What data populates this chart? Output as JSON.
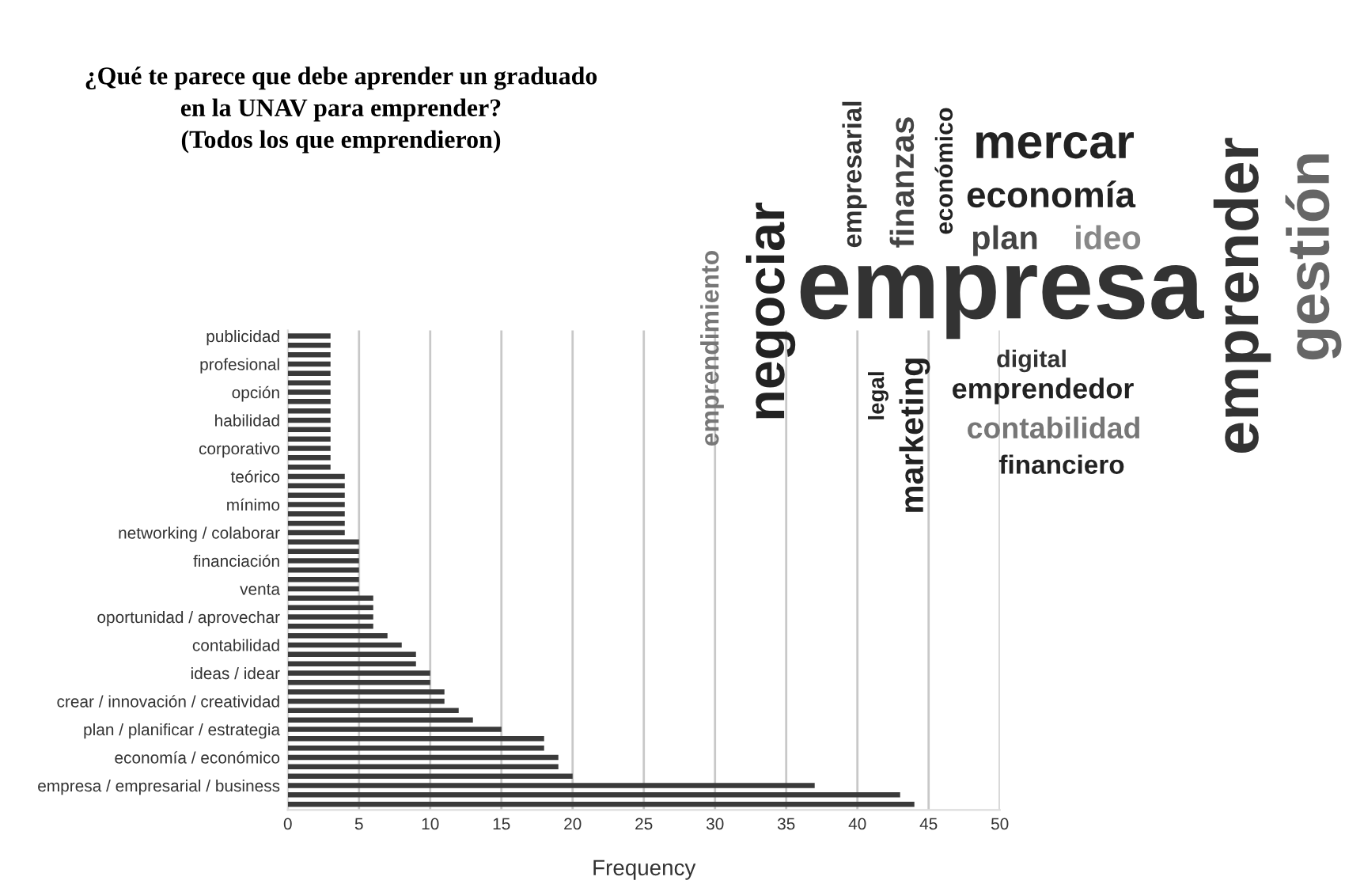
{
  "chart_data": [
    {
      "type": "bar",
      "orientation": "horizontal",
      "title": "¿Qué te parece que debe aprender un graduado\nen la UNAV para emprender?\n(Todos los que emprendieron)",
      "xlabel": "Frequency",
      "categories": [
        "publicidad",
        null,
        null,
        "profesional",
        null,
        null,
        "opción",
        null,
        null,
        "habilidad",
        null,
        null,
        "corporativo",
        null,
        null,
        "teórico",
        null,
        null,
        "mínimo",
        null,
        null,
        "networking / colaborar",
        null,
        null,
        "financiación",
        null,
        null,
        "venta",
        null,
        null,
        "oportunidad / aprovechar",
        null,
        null,
        "contabilidad",
        null,
        null,
        "ideas / idear",
        null,
        null,
        "crear / innovación / creatividad",
        null,
        null,
        "plan / planificar / estrategia",
        null,
        null,
        "economía / económico",
        null,
        null,
        "empresa / empresarial / business",
        null,
        null
      ],
      "values": [
        3,
        3,
        3,
        3,
        3,
        3,
        3,
        3,
        3,
        3,
        3,
        3,
        3,
        3,
        3,
        4,
        4,
        4,
        4,
        4,
        4,
        4,
        5,
        5,
        5,
        5,
        5,
        5,
        6,
        6,
        6,
        6,
        7,
        8,
        9,
        9,
        10,
        10,
        11,
        11,
        12,
        13,
        15,
        18,
        18,
        19,
        19,
        20,
        37,
        43,
        44
      ],
      "color": "#3a3a3a",
      "xlim": [
        0,
        50
      ],
      "xticks": [
        0,
        5,
        10,
        15,
        20,
        25,
        30,
        35,
        40,
        45,
        50
      ],
      "grid": "x"
    },
    {
      "type": "other",
      "annotations": [
        "emprendimiento",
        "negociar",
        "empresarial",
        "finanzas",
        "económico",
        "mercar",
        "economía",
        "plan",
        "ideo",
        "empresa",
        "emprender",
        "gestión",
        "digital",
        "legal",
        "marketing",
        "emprendedor",
        "contabilidad",
        "financiero"
      ]
    }
  ]
}
